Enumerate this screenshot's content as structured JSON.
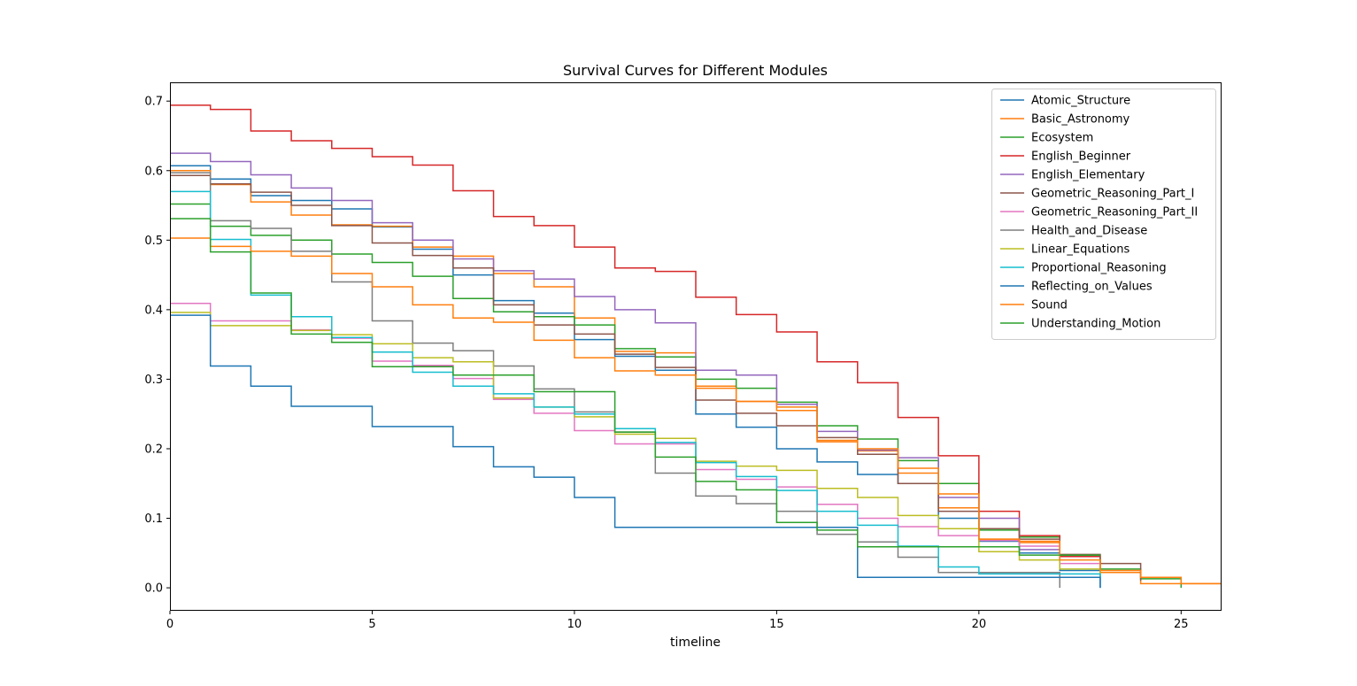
{
  "chart_data": {
    "type": "line",
    "step": "post",
    "title": "Survival Curves for Different Modules",
    "xlabel": "timeline",
    "ylabel": "",
    "xlim": [
      0,
      26
    ],
    "ylim": [
      -0.033,
      0.727
    ],
    "xticks": [
      0,
      5,
      10,
      15,
      20,
      25
    ],
    "yticks": [
      0.0,
      0.1,
      0.2,
      0.3,
      0.4,
      0.5,
      0.6,
      0.7
    ],
    "xtick_labels": [
      "0",
      "5",
      "10",
      "15",
      "20",
      "25"
    ],
    "ytick_labels": [
      "0.0",
      "0.1",
      "0.2",
      "0.3",
      "0.4",
      "0.5",
      "0.6",
      "0.7"
    ],
    "grid": false,
    "legend_position": "upper right",
    "series": [
      {
        "name": "Atomic_Structure",
        "color": "#1f77b4",
        "x": [
          0,
          1,
          2,
          3,
          4,
          5,
          6,
          7,
          8,
          9,
          10,
          11,
          12,
          13,
          14,
          15,
          16,
          17,
          18,
          19,
          20,
          21,
          22,
          23
        ],
        "y": [
          0.607,
          0.588,
          0.564,
          0.557,
          0.545,
          0.519,
          0.487,
          0.45,
          0.413,
          0.395,
          0.357,
          0.333,
          0.313,
          0.25,
          0.231,
          0.2,
          0.181,
          0.163,
          0.15,
          0.1,
          0.067,
          0.05,
          0.025,
          0.0
        ]
      },
      {
        "name": "Basic_Astronomy",
        "color": "#ff7f0e",
        "x": [
          0,
          1,
          2,
          3,
          4,
          5,
          6,
          7,
          8,
          9,
          10,
          11,
          12,
          13,
          14,
          15,
          16,
          17,
          18,
          19,
          20,
          21,
          22,
          23,
          24,
          25,
          26
        ],
        "y": [
          0.6,
          0.58,
          0.555,
          0.536,
          0.522,
          0.52,
          0.49,
          0.477,
          0.452,
          0.433,
          0.388,
          0.34,
          0.338,
          0.29,
          0.268,
          0.255,
          0.21,
          0.197,
          0.165,
          0.115,
          0.07,
          0.065,
          0.045,
          0.022,
          0.006,
          0.006,
          0.006
        ]
      },
      {
        "name": "Ecosystem",
        "color": "#2ca02c",
        "x": [
          0,
          1,
          2,
          3,
          4,
          5,
          6,
          7,
          8,
          9,
          10,
          11,
          12,
          13,
          14,
          15,
          16,
          17,
          18,
          19,
          20,
          21,
          22,
          23,
          24,
          25
        ],
        "y": [
          0.552,
          0.52,
          0.507,
          0.5,
          0.48,
          0.468,
          0.448,
          0.416,
          0.397,
          0.39,
          0.378,
          0.344,
          0.332,
          0.3,
          0.287,
          0.267,
          0.233,
          0.214,
          0.183,
          0.15,
          0.083,
          0.073,
          0.047,
          0.027,
          0.013,
          0.0
        ]
      },
      {
        "name": "English_Beginner",
        "color": "#d62728",
        "x": [
          0,
          1,
          2,
          3,
          4,
          5,
          6,
          7,
          8,
          9,
          10,
          11,
          12,
          13,
          14,
          15,
          16,
          17,
          18,
          19,
          20,
          21,
          22,
          23
        ],
        "y": [
          0.694,
          0.688,
          0.657,
          0.643,
          0.632,
          0.62,
          0.608,
          0.571,
          0.534,
          0.521,
          0.49,
          0.46,
          0.455,
          0.418,
          0.393,
          0.368,
          0.325,
          0.295,
          0.245,
          0.19,
          0.11,
          0.075,
          0.045,
          0.045
        ]
      },
      {
        "name": "English_Elementary",
        "color": "#9467bd",
        "x": [
          0,
          1,
          2,
          3,
          4,
          5,
          6,
          7,
          8,
          9,
          10,
          11,
          12,
          13,
          14,
          15,
          16,
          17,
          18,
          19,
          20,
          21,
          22
        ],
        "y": [
          0.625,
          0.613,
          0.594,
          0.575,
          0.557,
          0.525,
          0.5,
          0.473,
          0.456,
          0.444,
          0.419,
          0.4,
          0.381,
          0.313,
          0.306,
          0.264,
          0.225,
          0.198,
          0.187,
          0.13,
          0.1,
          0.055,
          0.03
        ]
      },
      {
        "name": "Geometric_Reasoning_Part_I",
        "color": "#8c564b",
        "x": [
          0,
          1,
          2,
          3,
          4,
          5,
          6,
          7,
          8,
          9,
          10,
          11,
          12,
          13,
          14,
          15,
          16,
          17,
          18,
          19,
          20,
          21,
          22,
          23,
          24
        ],
        "y": [
          0.593,
          0.581,
          0.569,
          0.55,
          0.521,
          0.496,
          0.478,
          0.46,
          0.407,
          0.378,
          0.365,
          0.336,
          0.317,
          0.27,
          0.251,
          0.233,
          0.216,
          0.192,
          0.15,
          0.11,
          0.085,
          0.07,
          0.048,
          0.035,
          0.01
        ]
      },
      {
        "name": "Geometric_Reasoning_Part_II",
        "color": "#e377c2",
        "x": [
          0,
          1,
          2,
          3,
          4,
          5,
          6,
          7,
          8,
          9,
          10,
          11,
          12,
          13,
          14,
          15,
          16,
          17,
          18,
          19,
          20,
          21,
          22,
          23
        ],
        "y": [
          0.409,
          0.384,
          0.384,
          0.371,
          0.359,
          0.326,
          0.32,
          0.301,
          0.271,
          0.251,
          0.226,
          0.207,
          0.207,
          0.17,
          0.156,
          0.145,
          0.12,
          0.1,
          0.088,
          0.075,
          0.068,
          0.06,
          0.035,
          0.035
        ]
      },
      {
        "name": "Health_and_Disease",
        "color": "#7f7f7f",
        "x": [
          0,
          1,
          2,
          3,
          4,
          5,
          6,
          7,
          8,
          9,
          10,
          11,
          12,
          13,
          14,
          15,
          16,
          17,
          18,
          19,
          20,
          21,
          22
        ],
        "y": [
          0.597,
          0.528,
          0.517,
          0.484,
          0.44,
          0.384,
          0.352,
          0.341,
          0.319,
          0.286,
          0.253,
          0.224,
          0.165,
          0.132,
          0.121,
          0.11,
          0.077,
          0.066,
          0.044,
          0.022,
          0.022,
          0.022,
          0.0
        ]
      },
      {
        "name": "Linear_Equations",
        "color": "#bcbd22",
        "x": [
          0,
          1,
          2,
          3,
          4,
          5,
          6,
          7,
          8,
          9,
          10,
          11,
          12,
          13,
          14,
          15,
          16,
          17,
          18,
          19,
          20,
          21,
          22,
          23
        ],
        "y": [
          0.396,
          0.377,
          0.377,
          0.37,
          0.364,
          0.351,
          0.331,
          0.325,
          0.273,
          0.26,
          0.246,
          0.221,
          0.215,
          0.182,
          0.175,
          0.169,
          0.143,
          0.13,
          0.104,
          0.085,
          0.052,
          0.04,
          0.027,
          0.015
        ]
      },
      {
        "name": "Proportional_Reasoning",
        "color": "#17becf",
        "x": [
          0,
          1,
          2,
          3,
          4,
          5,
          6,
          7,
          8,
          9,
          10,
          11,
          12,
          13,
          14,
          15,
          16,
          17,
          18,
          19,
          20,
          21,
          22,
          23
        ],
        "y": [
          0.57,
          0.501,
          0.421,
          0.39,
          0.36,
          0.339,
          0.31,
          0.29,
          0.279,
          0.26,
          0.25,
          0.229,
          0.209,
          0.18,
          0.16,
          0.14,
          0.11,
          0.09,
          0.06,
          0.03,
          0.02,
          0.02,
          0.02,
          0.015
        ]
      },
      {
        "name": "Reflecting_on_Values",
        "color": "#1f77b4",
        "x": [
          0,
          1,
          2,
          3,
          4,
          5,
          6,
          7,
          8,
          9,
          10,
          11,
          12,
          13,
          14,
          15,
          16,
          17,
          18,
          19,
          20,
          21,
          22,
          23
        ],
        "y": [
          0.392,
          0.319,
          0.29,
          0.261,
          0.261,
          0.232,
          0.232,
          0.203,
          0.174,
          0.159,
          0.13,
          0.087,
          0.087,
          0.087,
          0.087,
          0.087,
          0.087,
          0.015,
          0.015,
          0.015,
          0.015,
          0.015,
          0.015,
          0.0
        ]
      },
      {
        "name": "Sound",
        "color": "#ff7f0e",
        "x": [
          0,
          1,
          2,
          3,
          4,
          5,
          6,
          7,
          8,
          9,
          10,
          11,
          12,
          13,
          14,
          15,
          16,
          17,
          18,
          19,
          20,
          21,
          22,
          23,
          24,
          25,
          26
        ],
        "y": [
          0.503,
          0.491,
          0.484,
          0.477,
          0.452,
          0.433,
          0.407,
          0.388,
          0.382,
          0.356,
          0.331,
          0.312,
          0.306,
          0.287,
          0.268,
          0.26,
          0.212,
          0.2,
          0.172,
          0.135,
          0.07,
          0.067,
          0.04,
          0.025,
          0.015,
          0.006,
          0.006
        ]
      },
      {
        "name": "Understanding_Motion",
        "color": "#2ca02c",
        "x": [
          0,
          1,
          2,
          3,
          4,
          5,
          6,
          7,
          8,
          9,
          10,
          11,
          12,
          13,
          14,
          15,
          16,
          17,
          18,
          19,
          20,
          21,
          22,
          23
        ],
        "y": [
          0.531,
          0.483,
          0.424,
          0.365,
          0.353,
          0.318,
          0.318,
          0.306,
          0.306,
          0.282,
          0.282,
          0.224,
          0.188,
          0.153,
          0.141,
          0.094,
          0.083,
          0.059,
          0.059,
          0.059,
          0.059,
          0.047,
          0.047,
          0.047
        ]
      }
    ]
  }
}
